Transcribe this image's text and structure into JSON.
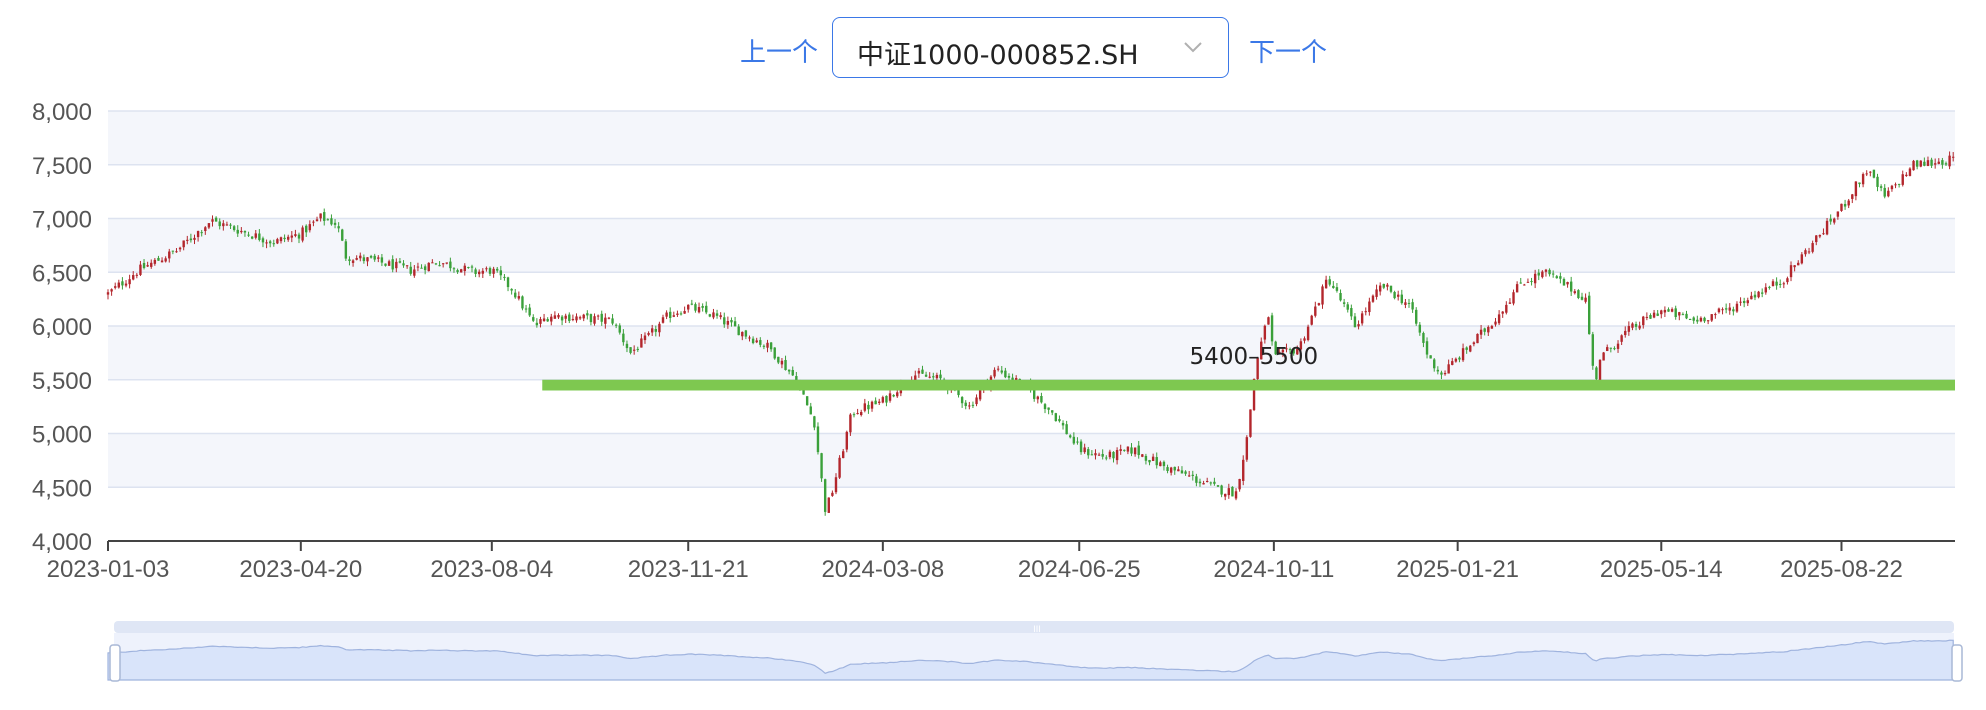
{
  "toolbar": {
    "prev_label": "上一个",
    "next_label": "下一个",
    "selected": "中证1000-000852.SH",
    "caret_icon": "chevron-down-icon"
  },
  "colors": {
    "up": "#b3262c",
    "down": "#3aa03a",
    "band": "#7ec850",
    "grid": "#dde3f0",
    "stripe": "#f4f6fb",
    "axis": "#555555",
    "accent": "#3b78e7",
    "zoom_fill": "#d9e4fa",
    "zoom_line": "#9fb3de"
  },
  "chart_data": {
    "type": "candlestick",
    "title": "",
    "xlabel": "",
    "ylabel": "",
    "ylim": [
      4000,
      8000
    ],
    "yticks": [
      "4,000",
      "4,500",
      "5,000",
      "5,500",
      "6,000",
      "6,500",
      "7,000",
      "7,500",
      "8,000"
    ],
    "xlim": [
      "2023-01-03",
      "2025-10-24"
    ],
    "xticks": [
      "2023-01-03",
      "2023-04-20",
      "2023-08-04",
      "2023-11-21",
      "2024-03-08",
      "2024-06-25",
      "2024-10-11",
      "2025-01-21",
      "2025-05-14",
      "2025-08-22"
    ],
    "grid": true,
    "support_band": {
      "label": "5400–5500",
      "low": 5400,
      "high": 5500,
      "start": "2023-09-01",
      "end": "2025-10-24"
    },
    "price_path": [
      [
        "2023-01-03",
        6300
      ],
      [
        "2023-01-20",
        6520
      ],
      [
        "2023-02-10",
        6700
      ],
      [
        "2023-03-01",
        6980
      ],
      [
        "2023-03-15",
        6900
      ],
      [
        "2023-04-05",
        6780
      ],
      [
        "2023-04-20",
        6860
      ],
      [
        "2023-05-01",
        7010
      ],
      [
        "2023-05-10",
        6950
      ],
      [
        "2023-05-15",
        6650
      ],
      [
        "2023-06-01",
        6600
      ],
      [
        "2023-06-20",
        6520
      ],
      [
        "2023-07-05",
        6600
      ],
      [
        "2023-07-25",
        6500
      ],
      [
        "2023-08-04",
        6520
      ],
      [
        "2023-08-15",
        6350
      ],
      [
        "2023-08-28",
        6000
      ],
      [
        "2023-09-05",
        6100
      ],
      [
        "2023-09-20",
        6080
      ],
      [
        "2023-10-10",
        6050
      ],
      [
        "2023-10-20",
        5750
      ],
      [
        "2023-10-30",
        5900
      ],
      [
        "2023-11-10",
        6100
      ],
      [
        "2023-11-21",
        6180
      ],
      [
        "2023-12-05",
        6100
      ],
      [
        "2023-12-20",
        5950
      ],
      [
        "2024-01-05",
        5800
      ],
      [
        "2024-01-20",
        5500
      ],
      [
        "2024-01-30",
        5100
      ],
      [
        "2024-02-05",
        4300
      ],
      [
        "2024-02-08",
        4400
      ],
      [
        "2024-02-20",
        5200
      ],
      [
        "2024-03-08",
        5300
      ],
      [
        "2024-03-25",
        5550
      ],
      [
        "2024-04-10",
        5500
      ],
      [
        "2024-04-25",
        5250
      ],
      [
        "2024-05-10",
        5600
      ],
      [
        "2024-05-25",
        5450
      ],
      [
        "2024-06-10",
        5200
      ],
      [
        "2024-06-25",
        4850
      ],
      [
        "2024-07-10",
        4780
      ],
      [
        "2024-07-25",
        4850
      ],
      [
        "2024-08-10",
        4700
      ],
      [
        "2024-08-25",
        4600
      ],
      [
        "2024-09-10",
        4480
      ],
      [
        "2024-09-20",
        4450
      ],
      [
        "2024-09-26",
        4950
      ],
      [
        "2024-10-01",
        5650
      ],
      [
        "2024-10-08",
        6100
      ],
      [
        "2024-10-11",
        5700
      ],
      [
        "2024-10-25",
        5800
      ],
      [
        "2024-11-10",
        6450
      ],
      [
        "2024-11-25",
        6000
      ],
      [
        "2024-12-10",
        6380
      ],
      [
        "2024-12-25",
        6200
      ],
      [
        "2025-01-05",
        5700
      ],
      [
        "2025-01-12",
        5550
      ],
      [
        "2025-01-21",
        5700
      ],
      [
        "2025-02-10",
        6050
      ],
      [
        "2025-02-25",
        6400
      ],
      [
        "2025-03-10",
        6500
      ],
      [
        "2025-03-25",
        6350
      ],
      [
        "2025-04-02",
        6250
      ],
      [
        "2025-04-07",
        5450
      ],
      [
        "2025-04-10",
        5700
      ],
      [
        "2025-04-25",
        5950
      ],
      [
        "2025-05-14",
        6150
      ],
      [
        "2025-06-01",
        6050
      ],
      [
        "2025-06-20",
        6150
      ],
      [
        "2025-07-05",
        6300
      ],
      [
        "2025-07-20",
        6420
      ],
      [
        "2025-08-05",
        6750
      ],
      [
        "2025-08-22",
        7100
      ],
      [
        "2025-09-05",
        7450
      ],
      [
        "2025-09-15",
        7200
      ],
      [
        "2025-10-01",
        7500
      ],
      [
        "2025-10-24",
        7550
      ]
    ]
  }
}
